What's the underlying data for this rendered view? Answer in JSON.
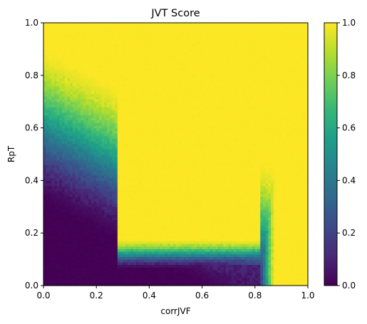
{
  "chart_data": {
    "type": "heatmap",
    "title": "JVT Score",
    "xlabel": "corrJVF",
    "ylabel": "RpT",
    "xlim": [
      0.0,
      1.0
    ],
    "ylim": [
      0.0,
      1.0
    ],
    "x_ticks": [
      0.0,
      0.2,
      0.4,
      0.6,
      0.8,
      1.0
    ],
    "x_tick_labels": [
      "0.0",
      "0.2",
      "0.4",
      "0.6",
      "0.8",
      "1.0"
    ],
    "y_ticks": [
      0.0,
      0.2,
      0.4,
      0.6,
      0.8,
      1.0
    ],
    "y_tick_labels": [
      "0.0",
      "0.2",
      "0.4",
      "0.6",
      "0.8",
      "1.0"
    ],
    "colorbar": {
      "range": [
        0.0,
        1.0
      ],
      "ticks": [
        0.0,
        0.2,
        0.4,
        0.6,
        0.8,
        1.0
      ],
      "tick_labels": [
        "0.0",
        "0.2",
        "0.4",
        "0.6",
        "0.8",
        "1.0"
      ],
      "colormap": "viridis"
    },
    "grid": false,
    "colormap_stops": [
      "#440154",
      "#482878",
      "#3e4989",
      "#31688e",
      "#26828e",
      "#1f9e89",
      "#35b779",
      "#6ece58",
      "#b5de2b",
      "#fde725"
    ],
    "description_of_field": {
      "low_region": "RpT < ~0.1 and corrJVF < ~0.8 score ~0.0-0.1",
      "transition_x": 0.85,
      "high_region": "large RpT or corrJVF > ~0.85 score ~1.0"
    }
  }
}
